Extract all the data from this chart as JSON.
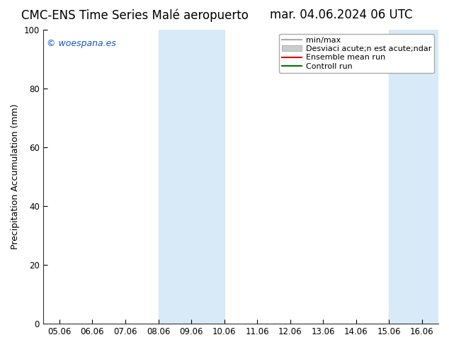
{
  "title_left": "CMC-ENS Time Series Malé aeropuerto",
  "title_right": "mar. 04.06.2024 06 UTC",
  "ylabel": "Precipitation Accumulation (mm)",
  "ylim": [
    0,
    100
  ],
  "yticks": [
    0,
    20,
    40,
    60,
    80,
    100
  ],
  "xtick_labels": [
    "05.06",
    "06.06",
    "07.06",
    "08.06",
    "09.06",
    "10.06",
    "11.06",
    "12.06",
    "13.06",
    "14.06",
    "15.06",
    "16.06"
  ],
  "xtick_positions": [
    0,
    1,
    2,
    3,
    4,
    5,
    6,
    7,
    8,
    9,
    10,
    11
  ],
  "xlim": [
    -0.5,
    11.5
  ],
  "shade_bands": [
    {
      "x_start": 3.0,
      "x_end": 5.0,
      "color": "#d8eaf8"
    },
    {
      "x_start": 10.0,
      "x_end": 11.5,
      "color": "#d8eaf8"
    }
  ],
  "watermark": "© woespana.es",
  "watermark_color": "#1155cc",
  "bg_color": "#ffffff",
  "plot_bg_color": "#ffffff",
  "legend_entries": [
    {
      "label": "min/max",
      "color": "#aaaaaa",
      "lw": 1.5,
      "ls": "-",
      "type": "line"
    },
    {
      "label": "Desviaci acute;n est acute;ndar",
      "color": "#cccccc",
      "lw": 8,
      "ls": "-",
      "type": "patch"
    },
    {
      "label": "Ensemble mean run",
      "color": "#dd0000",
      "lw": 1.5,
      "ls": "-",
      "type": "line"
    },
    {
      "label": "Controll run",
      "color": "#007700",
      "lw": 1.5,
      "ls": "-",
      "type": "line"
    }
  ],
  "title_fontsize": 12,
  "axis_fontsize": 9,
  "tick_fontsize": 8.5,
  "legend_fontsize": 8
}
